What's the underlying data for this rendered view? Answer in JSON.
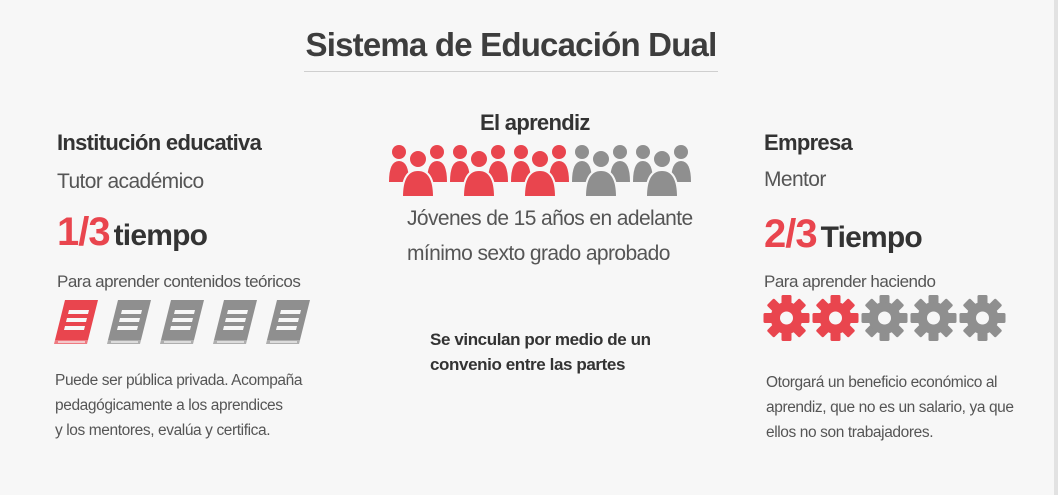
{
  "title": "Sistema de Educación Dual",
  "colors": {
    "accent": "#e9454e",
    "inactive": "#8f8f8f"
  },
  "institucion": {
    "heading": "Institución educativa",
    "role": "Tutor académico",
    "fraction": "1/3",
    "time_word": "tiempo",
    "purpose": "Para aprender contenidos teóricos",
    "icon": "book-icon",
    "icons_total": 5,
    "icons_highlighted": 1,
    "description": [
      "Puede ser pública privada. Acompaña",
      "pedagógicamente a los aprendices",
      "y los mentores, evalúa y certifica."
    ]
  },
  "aprendiz": {
    "heading": "El aprendiz",
    "icon": "people-group-icon",
    "icons_total": 5,
    "icons_highlighted": 3,
    "line1": "Jóvenes de 15 años en adelante",
    "line2": "mínimo sexto grado aprobado",
    "link_line1": "Se vinculan por medio de un",
    "link_line2": "convenio entre las partes"
  },
  "empresa": {
    "heading": "Empresa",
    "role": "Mentor",
    "fraction": "2/3",
    "time_word": "Tiempo",
    "purpose": "Para aprender haciendo",
    "icon": "gear-icon",
    "icons_total": 5,
    "icons_highlighted": 2,
    "description": [
      "Otorgará un beneficio económico al",
      "aprendiz, que no es un salario, ya que",
      "ellos no son trabajadores."
    ]
  }
}
